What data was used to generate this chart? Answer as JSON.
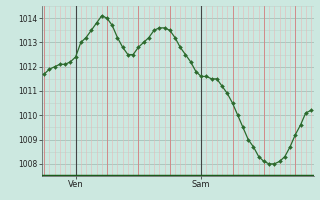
{
  "y_values": [
    1011.7,
    1011.9,
    1012.0,
    1012.1,
    1012.1,
    1012.2,
    1012.4,
    1013.0,
    1013.2,
    1013.5,
    1013.8,
    1014.1,
    1014.0,
    1013.7,
    1013.2,
    1012.8,
    1012.5,
    1012.5,
    1012.8,
    1013.0,
    1013.2,
    1013.5,
    1013.6,
    1013.6,
    1013.5,
    1013.2,
    1012.8,
    1012.5,
    1012.2,
    1011.8,
    1011.6,
    1011.6,
    1011.5,
    1011.5,
    1011.2,
    1010.9,
    1010.5,
    1010.0,
    1009.5,
    1009.0,
    1008.7,
    1008.3,
    1008.1,
    1008.0,
    1008.0,
    1008.1,
    1008.3,
    1008.7,
    1009.2,
    1009.6,
    1010.1,
    1010.2
  ],
  "n_points": 52,
  "ven_x": 6,
  "sam_x": 30,
  "xtick_labels": [
    "Ven",
    "Sam"
  ],
  "xtick_positions": [
    6,
    30
  ],
  "yticks": [
    1008,
    1009,
    1010,
    1011,
    1012,
    1013,
    1014
  ],
  "ylim": [
    1007.5,
    1014.5
  ],
  "xlim": [
    -0.5,
    51.5
  ],
  "line_color": "#2d6a2d",
  "marker_color": "#2d6a2d",
  "bg_color": "#cce8e0",
  "grid_color_v": "#d08080",
  "grid_color_h": "#a8c4bc",
  "grid_color_v_minor": "#e8b8b8",
  "grid_color_h_minor": "#bcd4cc",
  "vline_color": "#444444",
  "bottom_bar_color": "#1a5c1a"
}
